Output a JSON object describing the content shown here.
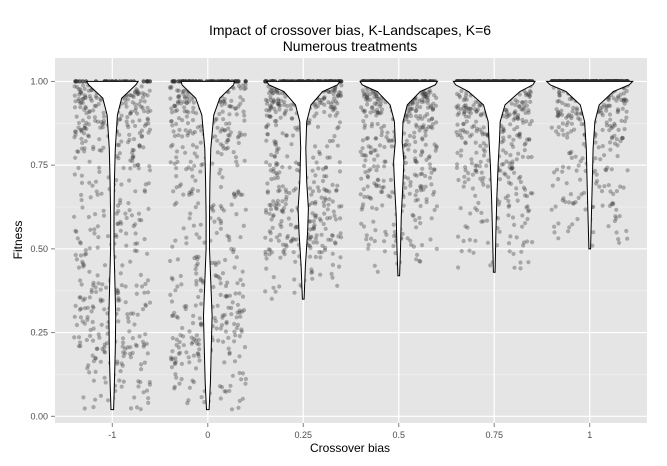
{
  "chart_data": {
    "type": "violin",
    "title": "Impact of crossover bias, K-Landscapes, K=6",
    "subtitle": "Numerous treatments",
    "xlabel": "Crossover bias",
    "ylabel": "Fitness",
    "categories": [
      "-1",
      "0",
      "0.25",
      "0.5",
      "0.75",
      "1"
    ],
    "y_ticks": [
      0.0,
      0.25,
      0.5,
      0.75,
      1.0
    ],
    "y_tick_labels": [
      "0.00",
      "0.25",
      "0.50",
      "0.75",
      "1.00"
    ],
    "ylim": [
      -0.02,
      1.07
    ],
    "grid": true,
    "point_color": "#333333",
    "background_color": "#e5e5e5",
    "groups": [
      {
        "category": "-1",
        "min": 0.02,
        "top_fraction": 0.05,
        "density": [
          [
            0.02,
            0.03
          ],
          [
            0.1,
            0.05
          ],
          [
            0.2,
            0.07
          ],
          [
            0.3,
            0.08
          ],
          [
            0.4,
            0.06
          ],
          [
            0.5,
            0.04
          ],
          [
            0.6,
            0.04
          ],
          [
            0.7,
            0.05
          ],
          [
            0.8,
            0.07
          ],
          [
            0.9,
            0.12
          ],
          [
            0.95,
            0.22
          ],
          [
            0.99,
            0.55
          ],
          [
            1.0,
            0.6
          ]
        ]
      },
      {
        "category": "0",
        "min": 0.02,
        "top_fraction": 0.1,
        "density": [
          [
            0.02,
            0.03
          ],
          [
            0.1,
            0.06
          ],
          [
            0.2,
            0.08
          ],
          [
            0.3,
            0.1
          ],
          [
            0.4,
            0.07
          ],
          [
            0.5,
            0.04
          ],
          [
            0.6,
            0.04
          ],
          [
            0.7,
            0.05
          ],
          [
            0.8,
            0.07
          ],
          [
            0.9,
            0.14
          ],
          [
            0.95,
            0.28
          ],
          [
            0.99,
            0.6
          ],
          [
            1.0,
            0.62
          ]
        ]
      },
      {
        "category": "0.25",
        "min": 0.35,
        "top_fraction": 0.15,
        "density": [
          [
            0.35,
            0.02
          ],
          [
            0.45,
            0.05
          ],
          [
            0.55,
            0.1
          ],
          [
            0.62,
            0.12
          ],
          [
            0.7,
            0.08
          ],
          [
            0.8,
            0.06
          ],
          [
            0.88,
            0.08
          ],
          [
            0.93,
            0.18
          ],
          [
            0.97,
            0.45
          ],
          [
            0.99,
            0.8
          ],
          [
            1.0,
            0.85
          ]
        ]
      },
      {
        "category": "0.5",
        "min": 0.42,
        "top_fraction": 0.2,
        "density": [
          [
            0.42,
            0.02
          ],
          [
            0.5,
            0.04
          ],
          [
            0.6,
            0.06
          ],
          [
            0.7,
            0.1
          ],
          [
            0.76,
            0.12
          ],
          [
            0.82,
            0.08
          ],
          [
            0.88,
            0.1
          ],
          [
            0.93,
            0.2
          ],
          [
            0.97,
            0.5
          ],
          [
            0.99,
            0.85
          ],
          [
            1.0,
            0.9
          ]
        ]
      },
      {
        "category": "0.75",
        "min": 0.43,
        "top_fraction": 0.3,
        "density": [
          [
            0.43,
            0.02
          ],
          [
            0.55,
            0.04
          ],
          [
            0.65,
            0.06
          ],
          [
            0.75,
            0.09
          ],
          [
            0.82,
            0.12
          ],
          [
            0.88,
            0.14
          ],
          [
            0.93,
            0.25
          ],
          [
            0.97,
            0.6
          ],
          [
            0.99,
            0.9
          ],
          [
            1.0,
            0.95
          ]
        ]
      },
      {
        "category": "1",
        "min": 0.5,
        "top_fraction": 0.45,
        "density": [
          [
            0.5,
            0.02
          ],
          [
            0.6,
            0.04
          ],
          [
            0.7,
            0.06
          ],
          [
            0.8,
            0.08
          ],
          [
            0.88,
            0.12
          ],
          [
            0.93,
            0.22
          ],
          [
            0.97,
            0.55
          ],
          [
            0.99,
            0.92
          ],
          [
            1.0,
            1.0
          ]
        ]
      }
    ]
  }
}
